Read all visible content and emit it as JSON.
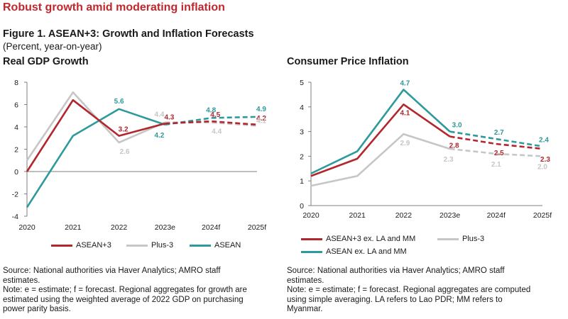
{
  "header": {
    "headline": "Robust growth amid moderating inflation",
    "figure_title": "Figure 1. ASEAN+3: Growth and Inflation Forecasts",
    "figure_subtitle": "(Percent, year-on-year)"
  },
  "colors": {
    "asean3": "#b2262e",
    "plus3": "#c6c6c6",
    "asean": "#2e9a9c",
    "axis": "#7f7f7f"
  },
  "chart_data": [
    {
      "type": "line",
      "title": "Real GDP Growth",
      "categories": [
        "2020",
        "2021",
        "2022",
        "2023e",
        "2024f",
        "2025f"
      ],
      "ylim": [
        -4,
        8
      ],
      "yticks": [
        -4,
        -2,
        0,
        2,
        4,
        6,
        8
      ],
      "grid": false,
      "legend_position": "bottom",
      "forecast_from_index": 3,
      "series": [
        {
          "name": "ASEAN+3",
          "color_key": "asean3",
          "values": [
            0.0,
            6.4,
            3.2,
            4.3,
            4.5,
            4.2
          ]
        },
        {
          "name": "Plus-3",
          "color_key": "plus3",
          "values": [
            1.0,
            7.1,
            2.6,
            4.4,
            4.4,
            4.1
          ]
        },
        {
          "name": "ASEAN",
          "color_key": "asean",
          "values": [
            -3.2,
            3.2,
            5.6,
            4.2,
            4.8,
            4.9
          ]
        }
      ],
      "data_labels": [
        {
          "series": 0,
          "index": 2,
          "text": "3.2"
        },
        {
          "series": 0,
          "index": 3,
          "text": "4.3"
        },
        {
          "series": 0,
          "index": 4,
          "text": "4.5"
        },
        {
          "series": 0,
          "index": 5,
          "text": "4.2"
        },
        {
          "series": 1,
          "index": 2,
          "text": "2.6"
        },
        {
          "series": 1,
          "index": 3,
          "text": "4.4"
        },
        {
          "series": 1,
          "index": 4,
          "text": "4.4"
        },
        {
          "series": 1,
          "index": 5,
          "text": "4.1"
        },
        {
          "series": 2,
          "index": 2,
          "text": "5.6"
        },
        {
          "series": 2,
          "index": 3,
          "text": "4.2"
        },
        {
          "series": 2,
          "index": 4,
          "text": "4.8"
        },
        {
          "series": 2,
          "index": 5,
          "text": "4.9"
        }
      ],
      "notes": [
        "Source: National authorities via Haver Analytics; AMRO staff",
        "estimates.",
        "Note: e = estimate; f = forecast. Regional aggregates for growth are",
        "estimated using the weighted average of 2022 GDP on purchasing",
        "power parity basis."
      ]
    },
    {
      "type": "line",
      "title": "Consumer Price Inflation",
      "categories": [
        "2020",
        "2021",
        "2022",
        "2023e",
        "2024f",
        "2025f"
      ],
      "ylim": [
        0,
        5
      ],
      "yticks": [
        0,
        1,
        2,
        3,
        4,
        5
      ],
      "grid": false,
      "legend_position": "bottom",
      "forecast_from_index": 3,
      "series": [
        {
          "name": "ASEAN+3 ex. LA and MM",
          "color_key": "asean3",
          "values": [
            1.2,
            1.9,
            4.1,
            2.8,
            2.5,
            2.3
          ]
        },
        {
          "name": "Plus-3",
          "color_key": "plus3",
          "values": [
            0.8,
            1.2,
            2.9,
            2.3,
            2.1,
            2.0
          ]
        },
        {
          "name": "ASEAN ex. LA and MM",
          "color_key": "asean",
          "values": [
            1.3,
            2.2,
            4.7,
            3.0,
            2.7,
            2.4
          ]
        }
      ],
      "data_labels": [
        {
          "series": 0,
          "index": 2,
          "text": "4.1"
        },
        {
          "series": 0,
          "index": 3,
          "text": "2.8"
        },
        {
          "series": 0,
          "index": 4,
          "text": "2.5"
        },
        {
          "series": 0,
          "index": 5,
          "text": "2.3"
        },
        {
          "series": 1,
          "index": 2,
          "text": "2.9"
        },
        {
          "series": 1,
          "index": 3,
          "text": "2.3"
        },
        {
          "series": 1,
          "index": 4,
          "text": "2.1"
        },
        {
          "series": 1,
          "index": 5,
          "text": "2.0"
        },
        {
          "series": 2,
          "index": 2,
          "text": "4.7"
        },
        {
          "series": 2,
          "index": 3,
          "text": "3.0"
        },
        {
          "series": 2,
          "index": 4,
          "text": "2.7"
        },
        {
          "series": 2,
          "index": 5,
          "text": "2.4"
        }
      ],
      "notes": [
        "Source: National authorities via Haver Analytics; AMRO staff",
        "estimates.",
        "Note: e = estimate; f = forecast. Regional aggregates are computed",
        "using simple averaging. LA refers to Lao PDR; MM refers to",
        "Myanmar."
      ]
    }
  ]
}
